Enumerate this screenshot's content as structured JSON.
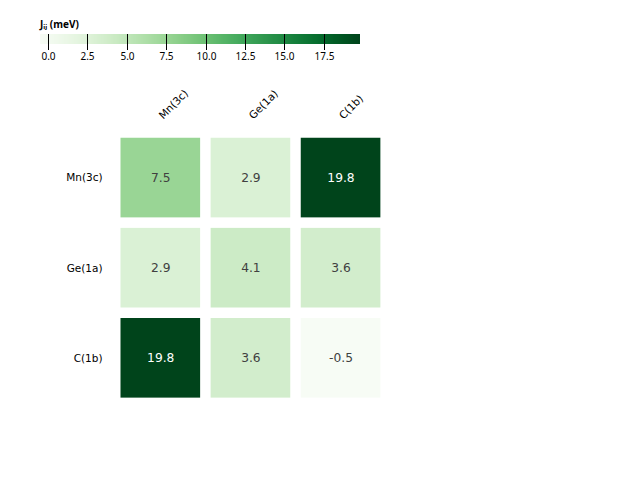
{
  "chart_data": {
    "type": "heatmap",
    "categories": [
      "Mn(3c)",
      "Ge(1a)",
      "C(1b)"
    ],
    "values": [
      [
        7.5,
        2.9,
        19.8
      ],
      [
        2.9,
        4.1,
        3.6
      ],
      [
        19.8,
        3.6,
        -0.5
      ]
    ],
    "data_labels": true,
    "colorbar_label": "Jᵢⱼ (meV)",
    "colorbar_lim": [
      -0.5,
      19.8
    ],
    "colorbar_ticks": [
      {
        "value": 0,
        "label": "0.0"
      },
      2.5,
      {
        "value": 5,
        "label": "5.0"
      },
      7.5,
      {
        "value": 10,
        "label": "10.0"
      },
      12.5,
      {
        "value": 15,
        "label": "15.0"
      },
      17.5
    ]
  }
}
